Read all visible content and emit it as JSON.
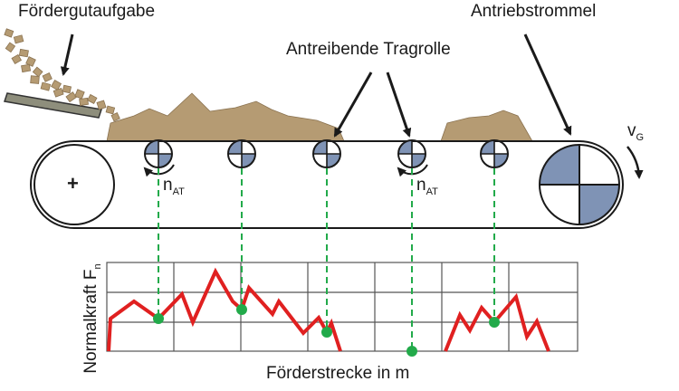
{
  "labels": {
    "feed": "Fördergutaufgabe",
    "drive_drum": "Antriebstrommel",
    "driving_idler": "Antreibende Tragrolle",
    "velocity_main": "v",
    "velocity_sub": "G",
    "speed_main": "n",
    "speed_sub": "AT",
    "plus": "+"
  },
  "chart": {
    "ylabel_main": "Normalkraft F",
    "ylabel_sub": "n",
    "xlabel": "Förderstrecke in m"
  },
  "colors": {
    "material": "#b59b73",
    "drum_quadrant": "#7f93b5",
    "curve": "#e02020",
    "marker": "#22aa4a"
  }
}
